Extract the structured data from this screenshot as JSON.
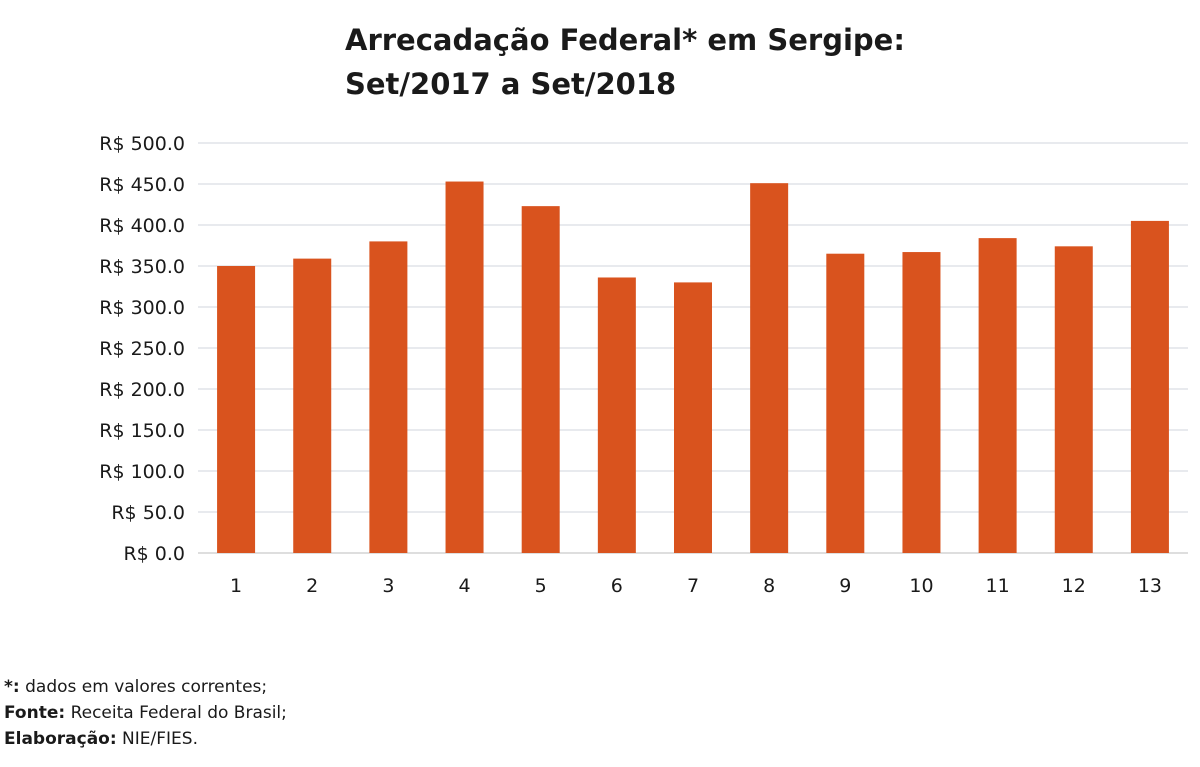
{
  "chart_data": {
    "type": "bar",
    "title": [
      "Arrecadação Federal* em Sergipe:",
      "Set/2017 a Set/2018"
    ],
    "xlabel": "",
    "ylabel": "",
    "categories": [
      "1",
      "2",
      "3",
      "4",
      "5",
      "6",
      "7",
      "8",
      "9",
      "10",
      "11",
      "12",
      "13"
    ],
    "values": [
      350,
      359,
      380,
      453,
      423,
      336,
      330,
      451,
      365,
      367,
      384,
      374,
      405
    ],
    "ylim": [
      0,
      500
    ],
    "yticks": [
      "R$ 0.0",
      "R$ 50.0",
      "R$ 100.0",
      "R$ 150.0",
      "R$ 200.0",
      "R$ 250.0",
      "R$ 300.0",
      "R$ 350.0",
      "R$ 400.0",
      "R$ 450.0",
      "R$ 500.0"
    ],
    "ytick_values": [
      0,
      50,
      100,
      150,
      200,
      250,
      300,
      350,
      400,
      450,
      500
    ],
    "bar_color": "#d9531e",
    "grid": true,
    "legend": "none"
  },
  "notes": [
    {
      "label": "*:",
      "text": " dados em valores correntes;"
    },
    {
      "label": "Fonte:",
      "text": " Receita Federal do Brasil;"
    },
    {
      "label": "Elaboração:",
      "text": " NIE/FIES."
    }
  ]
}
